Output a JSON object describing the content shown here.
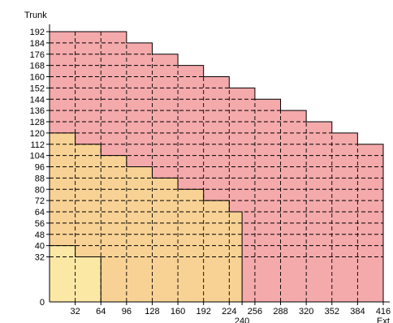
{
  "chart_data": {
    "type": "area",
    "title": "",
    "xlabel": "Ext",
    "ylabel": "Trunk",
    "xlim": [
      0,
      416
    ],
    "ylim": [
      0,
      192
    ],
    "x_ticks": [
      32,
      64,
      96,
      128,
      160,
      192,
      224,
      256,
      288,
      320,
      352,
      384,
      416
    ],
    "x_extra_ticks": [
      240
    ],
    "y_ticks": [
      0,
      32,
      40,
      48,
      56,
      64,
      72,
      80,
      88,
      96,
      104,
      112,
      120,
      128,
      136,
      144,
      152,
      160,
      168,
      176,
      184,
      192
    ],
    "grid": "dashed",
    "series": [
      {
        "color": "#f4a9ab",
        "steps": [
          {
            "x": 96,
            "y": 192
          },
          {
            "x": 128,
            "y": 184
          },
          {
            "x": 160,
            "y": 176
          },
          {
            "x": 192,
            "y": 168
          },
          {
            "x": 224,
            "y": 160
          },
          {
            "x": 256,
            "y": 152
          },
          {
            "x": 288,
            "y": 144
          },
          {
            "x": 320,
            "y": 136
          },
          {
            "x": 352,
            "y": 128
          },
          {
            "x": 384,
            "y": 120
          },
          {
            "x": 416,
            "y": 112
          }
        ]
      },
      {
        "color": "#f8d294",
        "steps": [
          {
            "x": 32,
            "y": 120
          },
          {
            "x": 64,
            "y": 112
          },
          {
            "x": 96,
            "y": 104
          },
          {
            "x": 128,
            "y": 96
          },
          {
            "x": 160,
            "y": 88
          },
          {
            "x": 192,
            "y": 80
          },
          {
            "x": 224,
            "y": 72
          },
          {
            "x": 240,
            "y": 64
          }
        ]
      },
      {
        "color": "#fbe8a4",
        "steps": [
          {
            "x": 0,
            "y": 48
          },
          {
            "x": 32,
            "y": 40
          },
          {
            "x": 64,
            "y": 32
          }
        ]
      }
    ]
  }
}
